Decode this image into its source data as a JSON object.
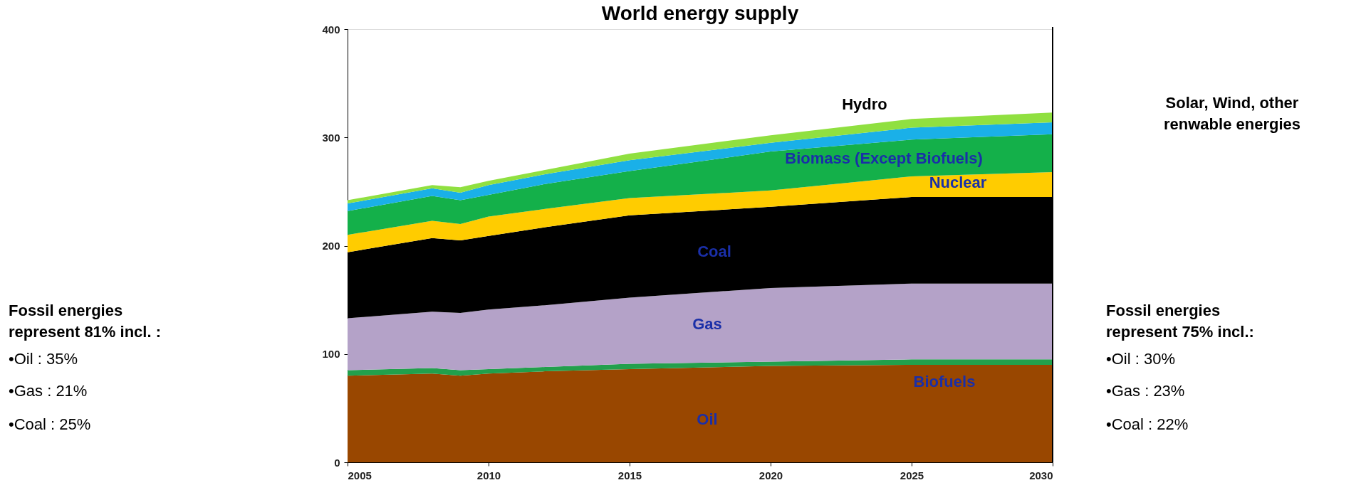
{
  "chart_data": {
    "type": "area",
    "title": "World energy supply",
    "stacked": true,
    "x": [
      2005,
      2008,
      2009,
      2010,
      2012,
      2015,
      2020,
      2025,
      2030
    ],
    "series": [
      {
        "color": "#994700",
        "values": [
          80,
          82,
          80,
          82,
          84,
          86,
          89,
          90,
          90
        ]
      },
      {
        "color": "#22a04c",
        "values": [
          5,
          5,
          5,
          4,
          4,
          5,
          4,
          5,
          5
        ]
      },
      {
        "color": "#b4a2c8",
        "values": [
          48,
          52,
          53,
          55,
          57,
          61,
          68,
          70,
          70
        ]
      },
      {
        "color": "#000000",
        "values": [
          61,
          68,
          67,
          68,
          72,
          76,
          75,
          80,
          80
        ]
      },
      {
        "color": "#ffcc00",
        "values": [
          16,
          16,
          15,
          18,
          17,
          16,
          15,
          19,
          23
        ]
      },
      {
        "color": "#14b04a",
        "values": [
          22,
          23,
          22,
          20,
          23,
          25,
          36,
          34,
          35
        ]
      },
      {
        "color": "#1ab0e8",
        "values": [
          7,
          7,
          7,
          9,
          9,
          10,
          8,
          11,
          11
        ]
      },
      {
        "color": "#90e040",
        "values": [
          3,
          3,
          5,
          4,
          4,
          6,
          7,
          8,
          9
        ]
      }
    ],
    "xlim": [
      2005,
      2030
    ],
    "xticks": [
      2005,
      2010,
      2015,
      2020,
      2025,
      2030
    ],
    "ylim": [
      0,
      400
    ],
    "yticks": [
      0,
      100,
      200,
      300,
      400
    ],
    "grid": false,
    "legend": false,
    "ref_lines": [
      {
        "axis": "x",
        "value": 2030,
        "color": "#000000"
      }
    ],
    "annotations": [
      "Oil",
      "Gas",
      "Coal",
      "Biofuels",
      "Nuclear",
      "Biomass (Except Biofuels)",
      "Hydro",
      "Solar, Wind, other\nrenwable energies",
      "Fossil energies\nrepresent 81% incl. :",
      "•Oil : 35%",
      "•Gas : 21%",
      "•Coal : 25%",
      "Fossil energies\nrepresent 75% incl.:",
      "•Oil : 30%",
      "•Gas : 23%",
      "•Coal : 22%"
    ]
  }
}
